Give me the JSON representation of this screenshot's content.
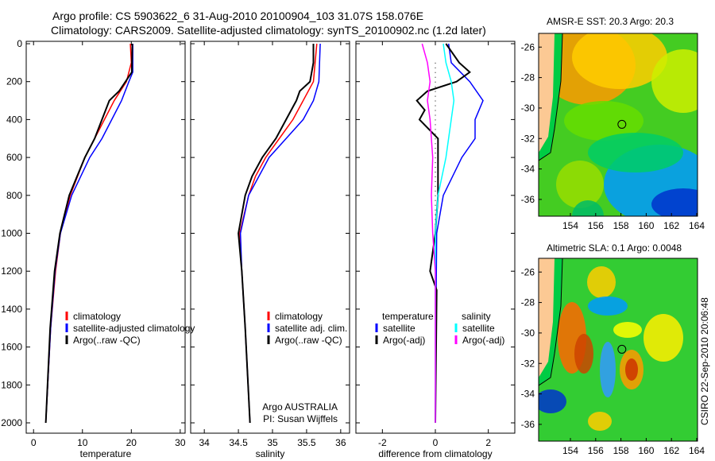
{
  "title": {
    "line1": "Argo profile: CS 5903622_6 31-Aug-2010 20100904_103 31.07S 158.076E",
    "line2": "Climatology: CARS2009. Satellite-adjusted climatology: synTS_20100902.nc (1.2d later)"
  },
  "colors": {
    "climatology": "#ff0000",
    "satellite": "#0000ff",
    "argo": "#000000",
    "sal_satellite": "#00ffff",
    "sal_argo": "#ff00ff"
  },
  "chart_data": [
    {
      "type": "line",
      "xlabel": "temperature",
      "xlim": [
        -1.5,
        31
      ],
      "ylim": [
        0,
        2000
      ],
      "y_reversed": true,
      "xticks": [
        "0",
        "10",
        "20",
        "30"
      ],
      "xtick_values": [
        0,
        10,
        20,
        30
      ],
      "yticks": [
        "0",
        "200",
        "400",
        "600",
        "800",
        "1000",
        "1200",
        "1400",
        "1600",
        "1800",
        "2000"
      ],
      "legend": [
        "climatology",
        "satellite-adjusted climatology",
        "Argo(..raw -QC)"
      ],
      "series": [
        {
          "name": "climatology",
          "color_key": "climatology",
          "depth": [
            0,
            100,
            200,
            300,
            400,
            500,
            600,
            800,
            1000,
            1200,
            1500,
            2000
          ],
          "values": [
            19.8,
            20,
            19,
            16.5,
            14.5,
            12.5,
            10.5,
            7.5,
            5.5,
            4.5,
            3.5,
            2.5
          ]
        },
        {
          "name": "satellite-adjusted climatology",
          "color_key": "satellite",
          "depth": [
            0,
            150,
            200,
            300,
            400,
            500,
            600,
            800,
            1000,
            1200,
            1500,
            2000
          ],
          "values": [
            20.3,
            20.3,
            19.5,
            18,
            16,
            14,
            11.5,
            7.8,
            5.5,
            4.4,
            3.5,
            2.5
          ]
        },
        {
          "name": "Argo(..raw -QC)",
          "color_key": "argo",
          "depth": [
            0,
            150,
            250,
            300,
            400,
            500,
            600,
            800,
            1000,
            1200,
            1500,
            2000
          ],
          "values": [
            20.2,
            20.1,
            17.5,
            15.5,
            14,
            12.5,
            10.5,
            7.3,
            5.4,
            4.3,
            3.4,
            2.5
          ]
        }
      ]
    },
    {
      "type": "line",
      "xlabel": "salinity",
      "xlim": [
        33.8,
        36.13
      ],
      "ylim": [
        0,
        2000
      ],
      "y_reversed": true,
      "xticks": [
        "34",
        "34.5",
        "35",
        "35.5",
        "36"
      ],
      "xtick_values": [
        34,
        34.5,
        35,
        35.5,
        36
      ],
      "legend": [
        "climatology",
        "satellite adj. clim.",
        "Argo(..raw -QC)"
      ],
      "annotation": [
        "Argo AUSTRALIA",
        "PI: Susan Wijffels"
      ],
      "series": [
        {
          "name": "climatology",
          "color_key": "climatology",
          "depth": [
            0,
            200,
            300,
            400,
            500,
            600,
            700,
            800,
            1000,
            1200,
            1500,
            2000
          ],
          "values": [
            35.65,
            35.6,
            35.45,
            35.3,
            35.1,
            34.9,
            34.75,
            34.65,
            34.52,
            34.55,
            34.6,
            34.67
          ]
        },
        {
          "name": "satellite adj. clim.",
          "color_key": "satellite",
          "depth": [
            0,
            200,
            300,
            400,
            500,
            600,
            800,
            1000,
            1200,
            1500,
            2000
          ],
          "values": [
            35.7,
            35.68,
            35.6,
            35.45,
            35.2,
            34.95,
            34.65,
            34.53,
            34.55,
            34.6,
            34.67
          ]
        },
        {
          "name": "Argo(..raw -QC)",
          "color_key": "argo",
          "depth": [
            0,
            100,
            200,
            250,
            300,
            400,
            500,
            600,
            700,
            800,
            1000,
            1200,
            1500,
            2000
          ],
          "values": [
            35.6,
            35.6,
            35.55,
            35.4,
            35.35,
            35.2,
            35.05,
            34.85,
            34.7,
            34.6,
            34.5,
            34.55,
            34.6,
            34.67
          ]
        }
      ]
    },
    {
      "type": "line",
      "xlabel": "difference from climatology",
      "xlim": [
        -3,
        3
      ],
      "ylim": [
        0,
        2000
      ],
      "y_reversed": true,
      "xticks": [
        "-2",
        "0",
        "2"
      ],
      "xtick_values": [
        -2,
        0,
        2
      ],
      "legend_temperature": {
        "title": "temperature",
        "items": [
          "satellite",
          "Argo(-adj)"
        ]
      },
      "legend_salinity": {
        "title": "salinity",
        "items": [
          "satellite",
          "Argo(-adj)"
        ]
      },
      "series": [
        {
          "name": "temperature satellite",
          "color_key": "satellite",
          "depth": [
            0,
            100,
            200,
            300,
            400,
            500,
            600,
            800,
            1000,
            1500,
            2000
          ],
          "values": [
            0.5,
            0.6,
            1.3,
            1.8,
            1.5,
            1.5,
            1.0,
            0.3,
            0.05,
            0.02,
            0
          ]
        },
        {
          "name": "temperature Argo(-adj)",
          "color_key": "argo",
          "depth": [
            0,
            100,
            150,
            200,
            250,
            300,
            350,
            400,
            500,
            600,
            800,
            1000,
            1200,
            1300,
            2000
          ],
          "values": [
            0.4,
            0.9,
            1.3,
            0.8,
            -0.3,
            -0.7,
            -0.4,
            -0.6,
            0.1,
            0.1,
            0.1,
            0,
            -0.2,
            0.05,
            0
          ]
        },
        {
          "name": "salinity satellite",
          "color_key": "sal_satellite",
          "depth": [
            0,
            100,
            200,
            300,
            400,
            500,
            600,
            800,
            1000,
            2000
          ],
          "values": [
            0.3,
            0.4,
            0.6,
            0.7,
            0.6,
            0.5,
            0.4,
            0.1,
            0,
            0
          ]
        },
        {
          "name": "salinity Argo(-adj)",
          "color_key": "sal_argo",
          "depth": [
            0,
            100,
            200,
            300,
            400,
            600,
            800,
            1000,
            1200,
            2000
          ],
          "values": [
            -0.5,
            -0.3,
            -0.2,
            -0.3,
            -0.2,
            -0.1,
            -0.15,
            -0.1,
            0,
            0
          ]
        }
      ]
    },
    {
      "type": "heatmap",
      "title": "AMSR-E SST: 20.3 Argo: 20.3",
      "xticks": [
        "154",
        "156",
        "158",
        "160",
        "162",
        "164"
      ],
      "yticks": [
        "-26",
        "-28",
        "-30",
        "-32",
        "-34",
        "-36"
      ],
      "marker": {
        "lon": 158.076,
        "lat": -31.07
      }
    },
    {
      "type": "heatmap",
      "title": "Altimetric SLA: 0.1 Argo: 0.0048",
      "xticks": [
        "154",
        "156",
        "158",
        "160",
        "162",
        "164"
      ],
      "yticks": [
        "-26",
        "-28",
        "-30",
        "-32",
        "-34",
        "-36"
      ],
      "marker": {
        "lon": 158.076,
        "lat": -31.07
      }
    }
  ],
  "footer": "CSIRO 22-Sep-2010 20:06:48"
}
